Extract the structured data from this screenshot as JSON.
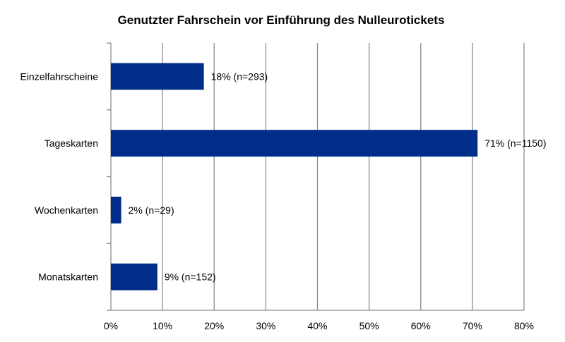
{
  "chart_data": {
    "type": "bar",
    "orientation": "horizontal",
    "title": "Genutzter Fahrschein vor Einführung des Nulleurotickets",
    "categories": [
      "Einzelfahrscheine",
      "Tageskarten",
      "Wochenkarten",
      "Monatskarten"
    ],
    "values": [
      18,
      71,
      2,
      9
    ],
    "data_labels": [
      "18% (n=293)",
      "71% (n=1150)",
      "2% (n=29)",
      "9% (n=152)"
    ],
    "xlim": [
      0,
      80
    ],
    "x_ticks": [
      "0%",
      "10%",
      "20%",
      "30%",
      "40%",
      "50%",
      "60%",
      "70%",
      "80%"
    ],
    "xlabel": "",
    "ylabel": "",
    "grid": "vertical",
    "legend": "none",
    "bar_color": "#002D87",
    "grid_color": "#8C8C8C"
  }
}
